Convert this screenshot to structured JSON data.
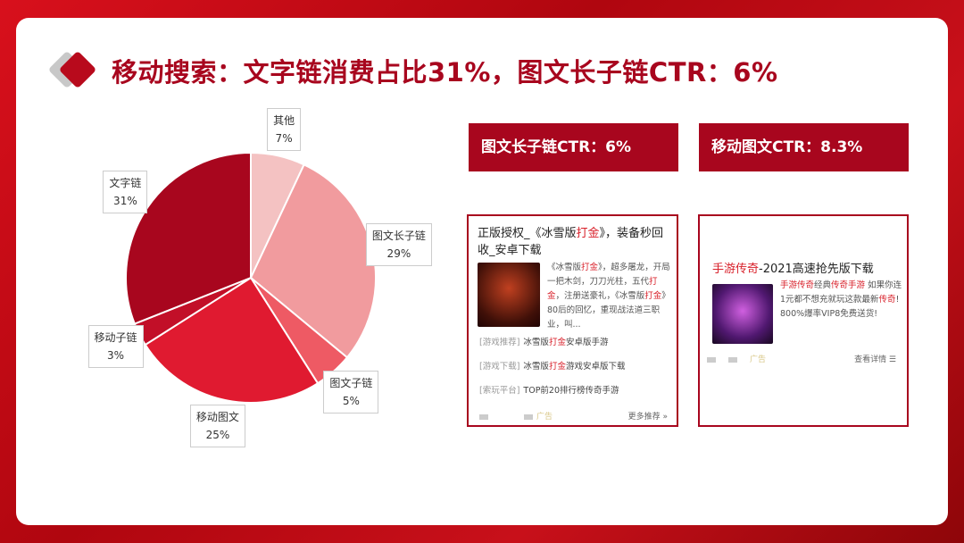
{
  "title": "移动搜索：文字链消费占比31%，图文长子链CTR：6%",
  "chart_data": {
    "type": "pie",
    "categories": [
      "其他",
      "图文长子链",
      "图文子链",
      "移动图文",
      "移动子链",
      "文字链"
    ],
    "values": [
      7,
      29,
      5,
      25,
      3,
      31
    ],
    "value_labels": [
      "7%",
      "29%",
      "5%",
      "25%",
      "3%",
      "31%"
    ],
    "colors": [
      "#f4c2c2",
      "#f19b9e",
      "#ee5a64",
      "#e01a30",
      "#c20f28",
      "#a8061e"
    ]
  },
  "ribbons": [
    "图文长子链CTR：6%",
    "移动图文CTR：8.3%"
  ],
  "ad1": {
    "title": [
      {
        "text": "正版授权_《冰雪版"
      },
      {
        "text": "打金",
        "red": true
      },
      {
        "text": "》，装备秒回收_安卓下载"
      }
    ],
    "desc": [
      {
        "text": "《冰雪版"
      },
      {
        "text": "打金",
        "red": true
      },
      {
        "text": "》，超多屠龙，开局一把木剑，刀刀光柱，五代"
      },
      {
        "text": "打金",
        "red": true
      },
      {
        "text": "，注册送豪礼，《冰雪版"
      },
      {
        "text": "打金",
        "red": true
      },
      {
        "text": "》80后的回忆，重现战法道三职业，叫..."
      }
    ],
    "links": [
      {
        "source": "[游戏推荐]",
        "text": [
          {
            "text": "冰雪版"
          },
          {
            "text": "打金",
            "red": true
          },
          {
            "text": "安卓版手游"
          }
        ]
      },
      {
        "source": "[游戏下载]",
        "text": [
          {
            "text": "冰雪版"
          },
          {
            "text": "打金",
            "red": true
          },
          {
            "text": "游戏安卓版下载"
          }
        ]
      },
      {
        "source": "[索玩平台]",
        "text": [
          {
            "text": "TOP前20排行榜传奇手游"
          }
        ]
      }
    ],
    "ad_tag": "广告",
    "more": "更多推荐 »"
  },
  "ad2": {
    "title": [
      {
        "text": "手游传奇",
        "red": true
      },
      {
        "text": "-2021高速抢先版下载"
      }
    ],
    "desc": [
      {
        "text": "手游传奇",
        "red": true
      },
      {
        "text": "经典"
      },
      {
        "text": "传奇手游",
        "red": true
      },
      {
        "text": " 如果你连1元都不想充就玩这款最新"
      },
      {
        "text": "传奇",
        "red": true
      },
      {
        "text": "! 800%爆率VIP8免费送货!"
      }
    ],
    "ad_tag": "广告",
    "more": "查看详情 ☰"
  }
}
